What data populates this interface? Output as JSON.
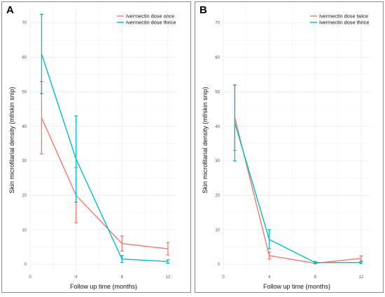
{
  "colors": {
    "series1": "#f8766d",
    "series2": "#00bfc4",
    "grid": "#ebebeb",
    "panel_border": "#8a8a8a"
  },
  "chart_data": [
    {
      "panel_label": "A",
      "type": "line",
      "error_bars": true,
      "grid": true,
      "legend_position": "top-right",
      "xlabel": "Follow up time (months)",
      "ylabel": "Skin microfilarial density (mf/skin snip)",
      "xlim": [
        0,
        12.8
      ],
      "ylim": [
        -2,
        74
      ],
      "xticks": [
        0,
        4,
        8,
        12
      ],
      "yticks": [
        0,
        10,
        20,
        30,
        40,
        50,
        60,
        70
      ],
      "series": [
        {
          "name": "Ivermectin dose once",
          "color": "#f8766d",
          "x": [
            1,
            4,
            8,
            12
          ],
          "y": [
            42.5,
            20,
            6,
            4.5
          ],
          "lower": [
            32,
            12,
            3.8,
            2.7
          ],
          "upper": [
            53,
            28,
            8.2,
            6.3
          ]
        },
        {
          "name": "Ivermectin dose thrice",
          "color": "#00bfc4",
          "x": [
            1,
            4,
            8,
            12
          ],
          "y": [
            61,
            30.5,
            1.5,
            0.8
          ],
          "lower": [
            49.5,
            18,
            0.5,
            0.3
          ],
          "upper": [
            72.5,
            43,
            2.5,
            1.3
          ]
        }
      ]
    },
    {
      "panel_label": "B",
      "type": "line",
      "error_bars": true,
      "grid": true,
      "legend_position": "top-right",
      "xlabel": "Follow up time (months)",
      "ylabel": "Skin microfilarial density (mf/skin snip)",
      "xlim": [
        0,
        12.8
      ],
      "ylim": [
        -2,
        74
      ],
      "xticks": [
        0,
        4,
        8,
        12
      ],
      "yticks": [
        0,
        10,
        20,
        30,
        40,
        50,
        60,
        70
      ],
      "series": [
        {
          "name": "Ivermectin dose twice",
          "color": "#f8766d",
          "x": [
            1,
            4,
            8,
            12
          ],
          "y": [
            42.5,
            2.5,
            0.3,
            1.7
          ],
          "lower": [
            33,
            1.5,
            0.1,
            1
          ],
          "upper": [
            52,
            3.5,
            0.6,
            2.4
          ]
        },
        {
          "name": "Ivermectin dose thrice",
          "color": "#00bfc4",
          "x": [
            1,
            4,
            8,
            12
          ],
          "y": [
            41,
            7.2,
            0.5,
            0.5
          ],
          "lower": [
            30,
            4.5,
            0.2,
            0.2
          ],
          "upper": [
            52,
            10,
            0.8,
            0.8
          ]
        }
      ]
    }
  ]
}
